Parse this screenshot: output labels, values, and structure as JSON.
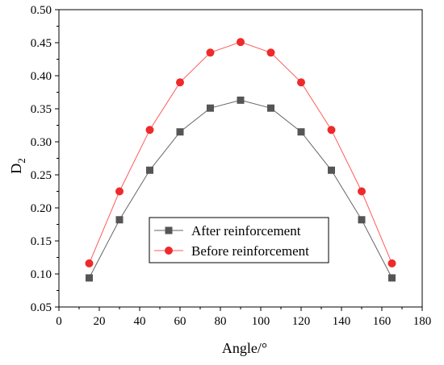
{
  "chart_data": {
    "type": "line",
    "title": "",
    "xlabel": "Angle/°",
    "ylabel_main": "D",
    "ylabel_sub": "2",
    "xlim": [
      0,
      180
    ],
    "ylim": [
      0.05,
      0.5
    ],
    "x_ticks": [
      0,
      20,
      40,
      60,
      80,
      100,
      120,
      140,
      160,
      180
    ],
    "y_ticks": [
      0.05,
      0.1,
      0.15,
      0.2,
      0.25,
      0.3,
      0.35,
      0.4,
      0.45,
      0.5
    ],
    "x_tick_labels": [
      "0",
      "20",
      "40",
      "60",
      "80",
      "100",
      "120",
      "140",
      "160",
      "180"
    ],
    "y_tick_labels": [
      "0.05",
      "0.10",
      "0.15",
      "0.20",
      "0.25",
      "0.30",
      "0.35",
      "0.40",
      "0.45",
      "0.50"
    ],
    "grid": false,
    "legend_position": "bottom-center",
    "x": [
      15,
      30,
      45,
      60,
      75,
      90,
      105,
      120,
      135,
      150,
      165
    ],
    "series": [
      {
        "name": "After  reinforcement",
        "marker": "square",
        "color": "#555555",
        "line_color": "#666666",
        "values": [
          0.094,
          0.182,
          0.257,
          0.315,
          0.351,
          0.363,
          0.351,
          0.315,
          0.257,
          0.182,
          0.094
        ]
      },
      {
        "name": "Before reinforcement",
        "marker": "circle",
        "color": "#ee2a2a",
        "line_color": "#ff5a5a",
        "values": [
          0.116,
          0.225,
          0.318,
          0.39,
          0.435,
          0.451,
          0.435,
          0.39,
          0.318,
          0.225,
          0.116
        ]
      }
    ]
  }
}
